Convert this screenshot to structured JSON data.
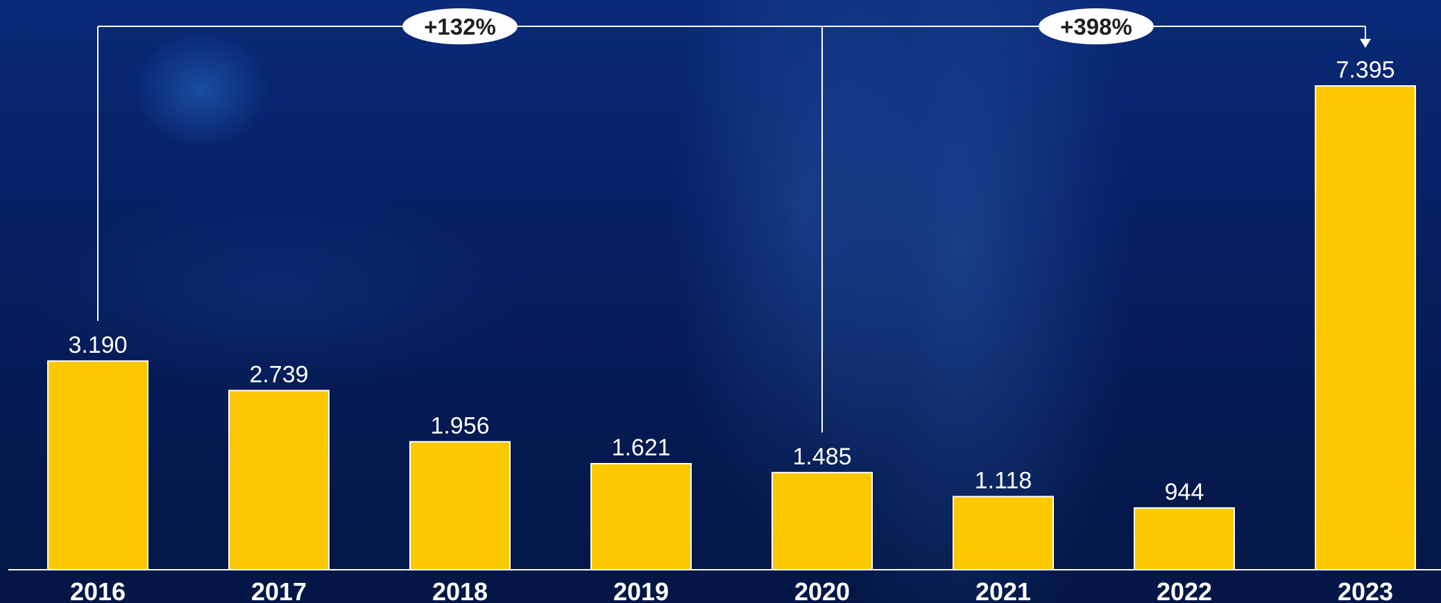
{
  "chart_data": {
    "type": "bar",
    "categories": [
      "2016",
      "2017",
      "2018",
      "2019",
      "2020",
      "2021",
      "2022",
      "2023"
    ],
    "values": [
      3190,
      2739,
      1956,
      1621,
      1485,
      1118,
      944,
      7395
    ],
    "value_labels": [
      "3.190",
      "2.739",
      "1.956",
      "1.621",
      "1.485",
      "1.118",
      "944",
      "7.395"
    ],
    "ylim": [
      0,
      7395
    ],
    "grid": false,
    "legend": "none",
    "bar_color": "#FCC800",
    "annotations": [
      {
        "label": "+132%",
        "from": "2016",
        "to": "2023"
      },
      {
        "label": "+398%",
        "from": "2020",
        "to": "2023"
      }
    ]
  },
  "colors": {
    "background": "#062064",
    "bar": "#FCC800",
    "text": "#FFFFFF",
    "badge_fill": "#FFFFFF",
    "badge_text": "#1F1F1F"
  }
}
